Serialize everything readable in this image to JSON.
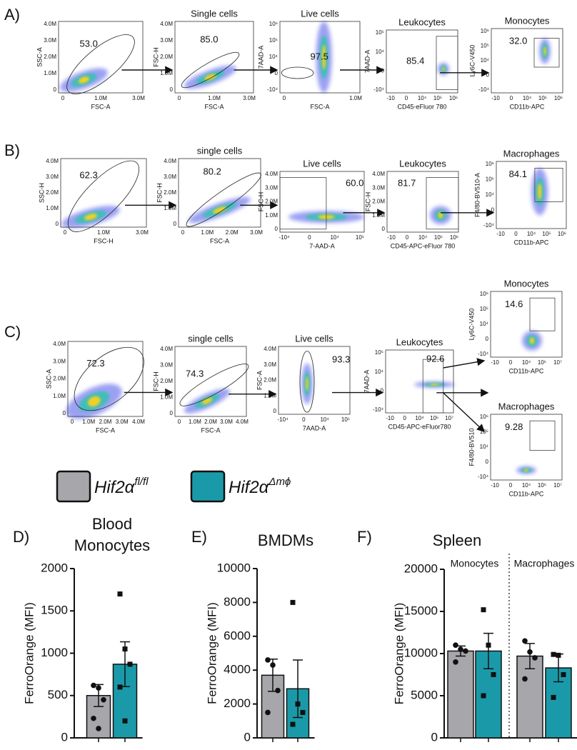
{
  "flow_rows": [
    {
      "label": "A)",
      "plots": [
        {
          "gate": "53.0",
          "xlabel": "FSC-A",
          "ylabel": "SSC-A",
          "xticks": [
            "0",
            "1.0M",
            "3.0M"
          ],
          "yticks": [
            "0",
            "1.0M",
            "2.0M",
            "3.0M",
            "4.0M"
          ]
        },
        {
          "title": "Single cells",
          "gate": "85.0",
          "xlabel": "FSC-A",
          "ylabel": "FSC-H",
          "xticks": [
            "0",
            "1.0M",
            "3.0M"
          ],
          "yticks": [
            "0",
            "1.0M",
            "2.0M",
            "3.0M",
            "4.0M"
          ]
        },
        {
          "title": "Live cells",
          "gate": "97.5",
          "xlabel": "FSC-A",
          "ylabel": "7AAD-A",
          "xticks": [
            "0",
            "1.0M"
          ],
          "yticks": [
            "-10⁴",
            "0",
            "10⁴",
            "10⁵",
            "10⁶"
          ]
        },
        {
          "title": "Leukocytes",
          "gate": "85.4",
          "xlabel": "CD45-eFluor 780",
          "ylabel": "7AAD-A",
          "xticks": [
            "-10",
            "0",
            "10⁴",
            "10⁵",
            "10⁶"
          ],
          "yticks": [
            "-10⁴",
            "0",
            "10⁴",
            "10⁵"
          ]
        },
        {
          "title": "Monocytes",
          "gate": "32.0",
          "xlabel": "CD11b-APC",
          "ylabel": "Ly6C-V450",
          "xticks": [
            "-10",
            "0",
            "10⁴",
            "10⁵",
            "10⁶"
          ],
          "yticks": [
            "-10⁴",
            "0",
            "10⁴",
            "10⁵",
            "10⁶"
          ]
        }
      ]
    },
    {
      "label": "B)",
      "plots": [
        {
          "gate": "62.3",
          "xlabel": "FSC-H",
          "ylabel": "SSC-H",
          "xticks": [
            "0",
            "1.0M",
            "3.0M"
          ],
          "yticks": [
            "0",
            "1.0M",
            "2.0M",
            "3.0M",
            "4.0M"
          ]
        },
        {
          "title": "single cells",
          "gate": "80.2",
          "xlabel": "FSC-A",
          "ylabel": "FSC-H",
          "xticks": [
            "0",
            "1.0M",
            "2.0M",
            "3.0M"
          ],
          "yticks": [
            "0",
            "1.0M",
            "2.0M",
            "3.0M",
            "4.0M"
          ]
        },
        {
          "title": "Live cells",
          "gate": "60.0",
          "xlabel": "7-AAD-A",
          "ylabel": "FSC-H",
          "xticks": [
            "-10⁴",
            "0",
            "10⁴",
            "10⁵"
          ],
          "yticks": [
            "0",
            "1.0M",
            "2.0M",
            "3.0M",
            "4.0M"
          ]
        },
        {
          "title": "Leukocytes",
          "gate": "81.7",
          "xlabel": "CD45-APC-eFluor 780",
          "ylabel": "FSC-H",
          "xticks": [
            "-10",
            "0",
            "10⁴",
            "10⁵",
            "10⁶"
          ],
          "yticks": [
            "0",
            "1.0M",
            "2.0M",
            "3.0M",
            "4.0M"
          ]
        },
        {
          "title": "Macrophages",
          "gate": "84.1",
          "xlabel": "CD11b-APC",
          "ylabel": "F4/80-BV510-A",
          "xticks": [
            "-10",
            "0",
            "10⁴",
            "10⁵",
            "10⁶"
          ],
          "yticks": [
            "-10⁴",
            "0",
            "10⁴",
            "10⁵",
            "10⁶"
          ]
        }
      ]
    },
    {
      "label": "C)",
      "plots": [
        {
          "gate": "72.3",
          "xlabel": "FSC-A",
          "ylabel": "SSC-A",
          "xticks": [
            "0",
            "1.0M",
            "2.0M",
            "3.0M",
            "4.0M"
          ],
          "yticks": [
            "0",
            "1.0M",
            "2.0M",
            "3.0M",
            "4.0M"
          ]
        },
        {
          "title": "single cells",
          "gate": "74.3",
          "xlabel": "FSC-A",
          "ylabel": "FSC-H",
          "xticks": [
            "0",
            "1.0M",
            "2.0M",
            "3.0M",
            "4.0M"
          ],
          "yticks": [
            "0",
            "1.0M",
            "2.0M",
            "3.0M",
            "4.0M"
          ]
        },
        {
          "title": "Live cells",
          "gate": "93.3",
          "xlabel": "7AAD-A",
          "ylabel": "FSC-A",
          "xticks": [
            "-10⁴",
            "0",
            "10⁴",
            "10⁵"
          ],
          "yticks": [
            "0",
            "1.0M",
            "2.0M",
            "3.0M",
            "4.0M"
          ]
        },
        {
          "title": "Leukocytes",
          "gate": "92.6",
          "xlabel": "CD45-APC-eFluor780",
          "ylabel": "7AAD-A",
          "xticks": [
            "-10",
            "0",
            "10⁴",
            "10⁵",
            "10⁷"
          ],
          "yticks": [
            "-10⁴",
            "0",
            "10⁴",
            "10⁵"
          ]
        },
        {
          "title": "Monocytes",
          "gate": "14.6",
          "xlabel": "CD11b-APC",
          "ylabel": "Ly6C-V450",
          "xticks": [
            "-10",
            "0",
            "10⁴",
            "10⁵",
            "10⁷"
          ],
          "yticks": [
            "-10⁴",
            "0",
            "10⁴",
            "10⁵",
            "10⁶"
          ]
        },
        {
          "title": "Macrophages",
          "gate": "9.28",
          "xlabel": "CD11b-APC",
          "ylabel": "F4/80-BV510",
          "xticks": [
            "-10",
            "0",
            "10⁴",
            "10⁵",
            "10⁷"
          ],
          "yticks": [
            "-10⁴",
            "0",
            "10⁴",
            "10⁵",
            "10⁶"
          ]
        }
      ]
    }
  ],
  "legend": [
    {
      "name": "Hif2α",
      "superscript": "fl/fl",
      "color": "#a7a6ab"
    },
    {
      "name": "Hif2α",
      "superscript": "Δmϕ",
      "color": "#1a9aa9"
    }
  ],
  "chart_data": [
    {
      "type": "bar",
      "panel": "D)",
      "title": [
        "Blood",
        "Monocytes"
      ],
      "ylabel": "FerroOrange (MFI)",
      "categories": [
        null
      ],
      "ylim": [
        0,
        2000
      ],
      "yticks": [
        0,
        500,
        1000,
        1500,
        2000
      ],
      "series": [
        {
          "color": "#a7a6ab",
          "marker": "circle",
          "values": [
            500
          ],
          "errors": [
            130
          ],
          "points": [
            [
              620,
              590,
              450,
              230,
              110
            ]
          ]
        },
        {
          "color": "#1a9aa9",
          "marker": "square",
          "values": [
            870
          ],
          "errors": [
            265
          ],
          "points": [
            [
              1700,
              1050,
              870,
              600,
              200
            ]
          ]
        }
      ]
    },
    {
      "type": "bar",
      "panel": "E)",
      "title": [
        "BMDMs"
      ],
      "ylabel": "FerroOrange (MFI)",
      "categories": [
        null
      ],
      "ylim": [
        0,
        10000
      ],
      "yticks": [
        0,
        2000,
        4000,
        6000,
        8000,
        10000
      ],
      "series": [
        {
          "color": "#a7a6ab",
          "marker": "circle",
          "values": [
            3700
          ],
          "errors": [
            950
          ],
          "points": [
            [
              4600,
              4300,
              2800,
              1500
            ]
          ]
        },
        {
          "color": "#1a9aa9",
          "marker": "square",
          "values": [
            2900
          ],
          "errors": [
            1700
          ],
          "points": [
            [
              8000,
              2000,
              1500,
              800
            ]
          ]
        }
      ]
    },
    {
      "type": "bar",
      "panel": "F)",
      "title": [
        "Spleen"
      ],
      "ylabel": "FerroOrange (MFI)",
      "categories": [
        "Monocytes",
        "Macrophages"
      ],
      "ylim": [
        0,
        20000
      ],
      "yticks": [
        0,
        5000,
        10000,
        15000,
        20000
      ],
      "series": [
        {
          "color": "#a7a6ab",
          "marker": "circle",
          "values": [
            10300,
            9700
          ],
          "errors": [
            600,
            1500
          ],
          "points": [
            [
              11000,
              10500,
              10300,
              9000
            ],
            [
              11500,
              10200,
              9500,
              7000
            ]
          ]
        },
        {
          "color": "#1a9aa9",
          "marker": "square",
          "values": [
            10300,
            8300
          ],
          "errors": [
            2100,
            1650
          ],
          "points": [
            [
              15200,
              11000,
              7500,
              5000
            ],
            [
              9900,
              9800,
              7500,
              4800
            ]
          ]
        }
      ]
    }
  ]
}
